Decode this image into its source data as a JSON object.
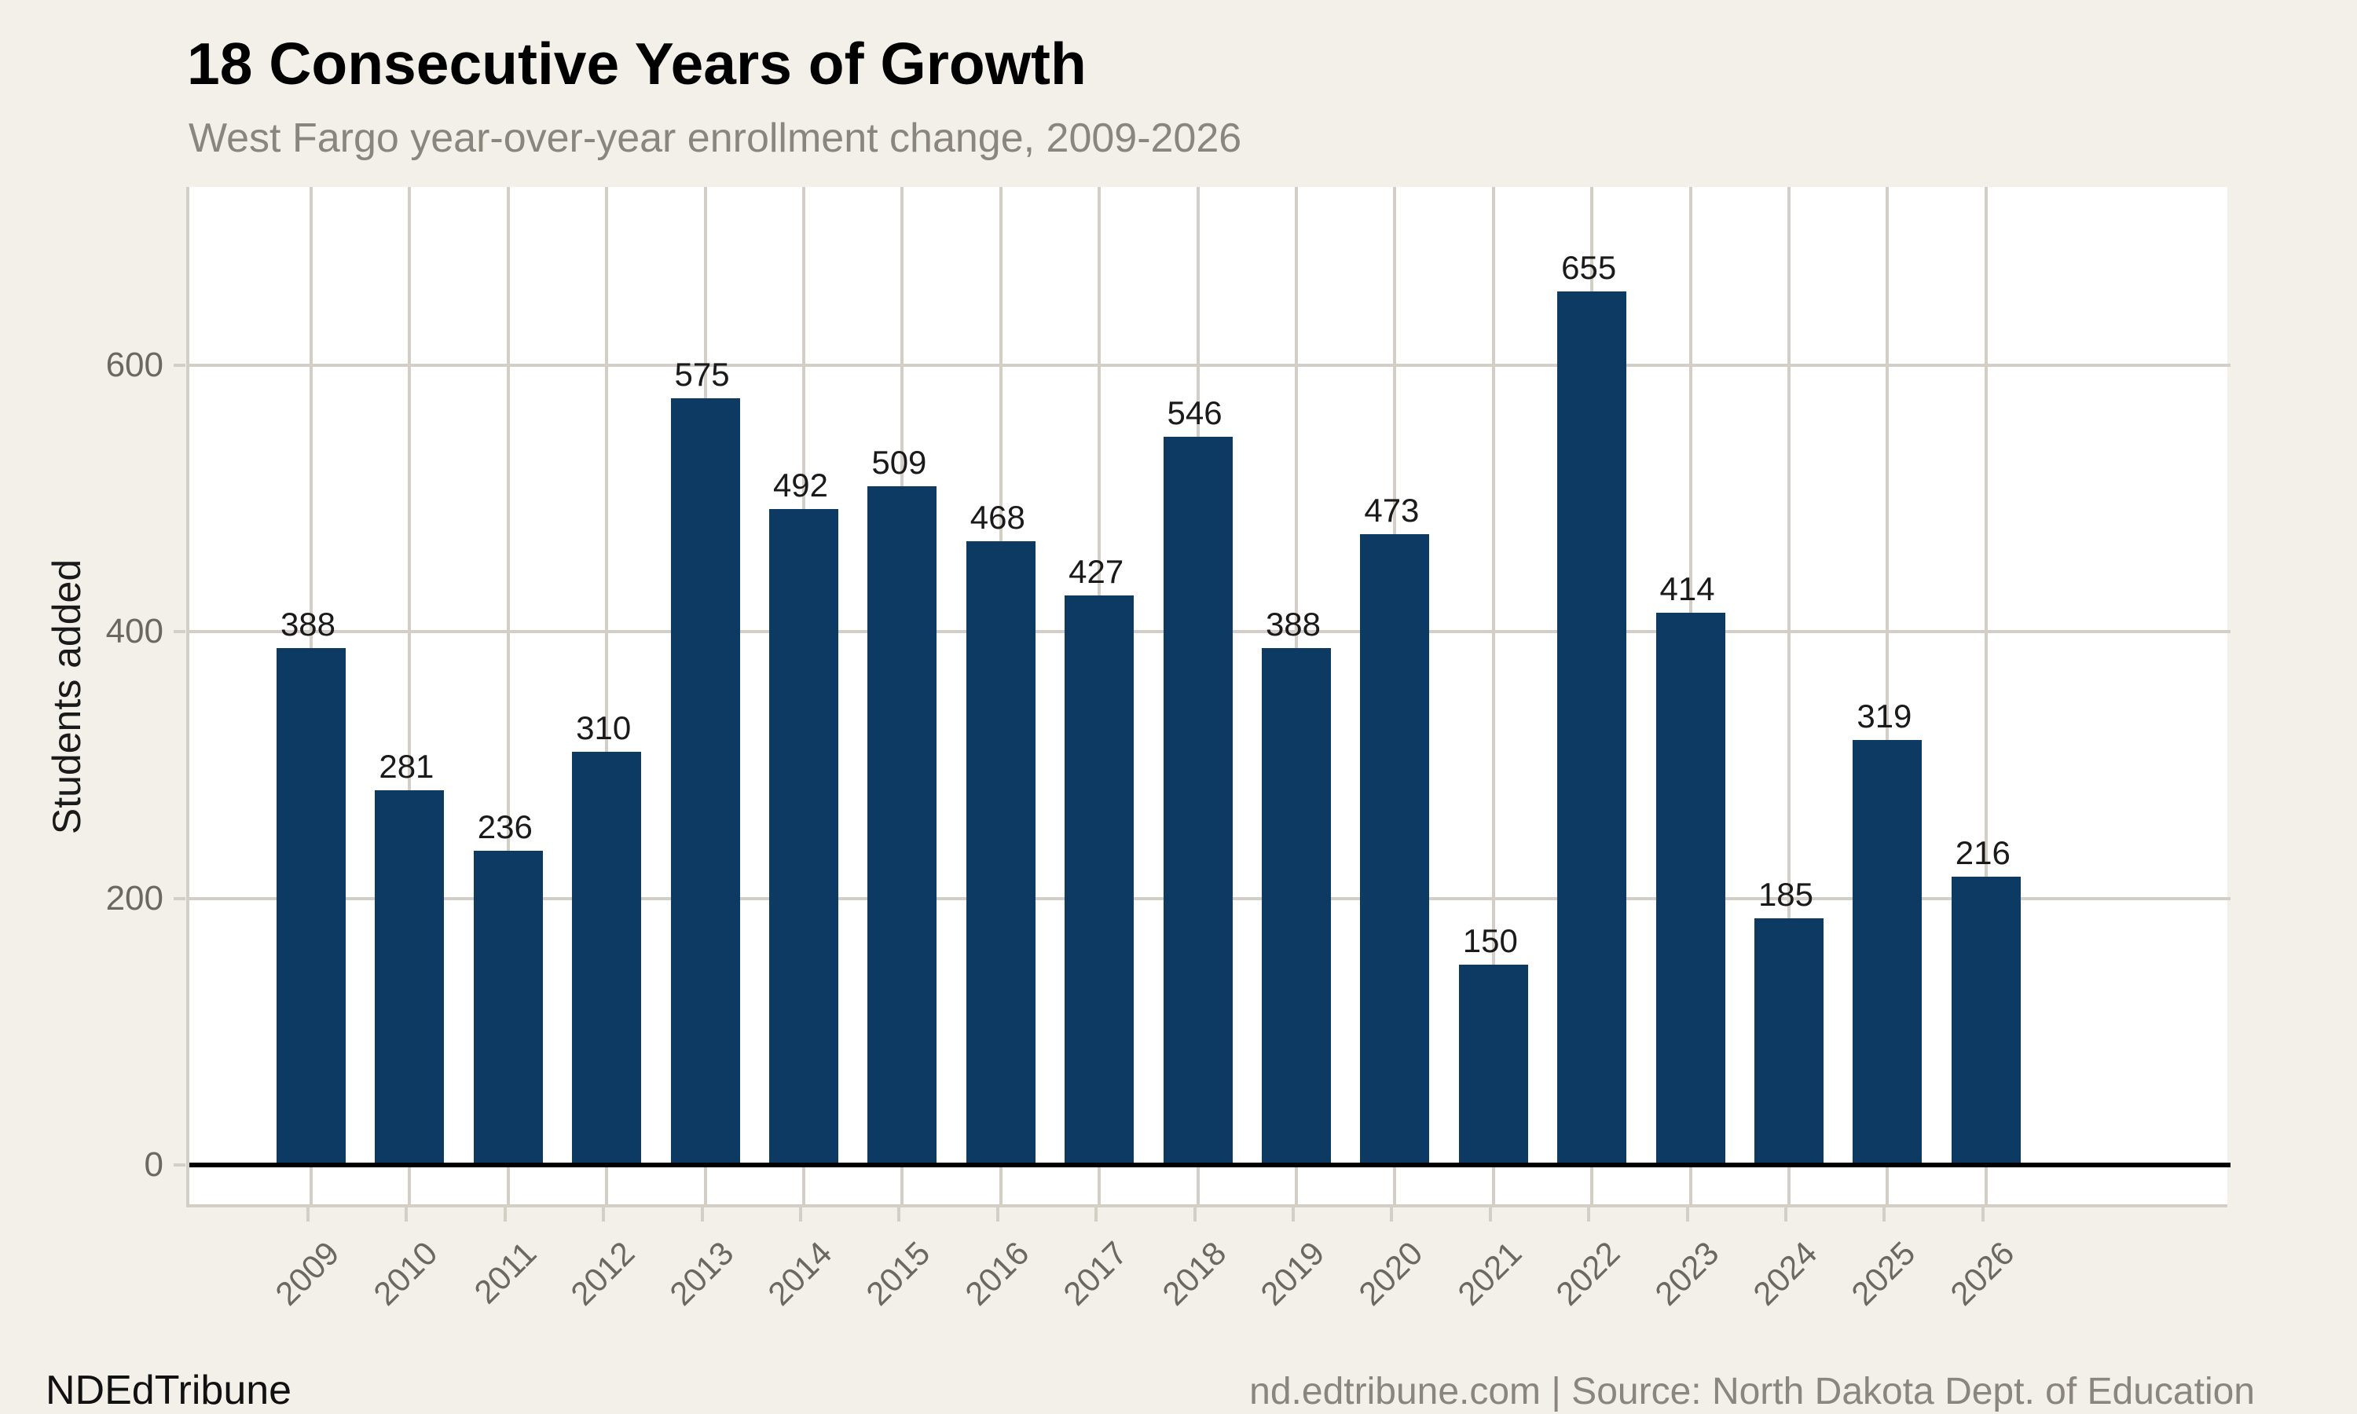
{
  "header": {
    "title": "18 Consecutive Years of Growth",
    "subtitle": "West Fargo year-over-year enrollment change, 2009-2026"
  },
  "footer": {
    "brand": "NDEdTribune",
    "source": "nd.edtribune.com | Source: North Dakota Dept. of Education"
  },
  "chart_data": {
    "type": "bar",
    "title": "18 Consecutive Years of Growth",
    "subtitle": "West Fargo year-over-year enrollment change, 2009-2026",
    "categories": [
      "2009",
      "2010",
      "2011",
      "2012",
      "2013",
      "2014",
      "2015",
      "2016",
      "2017",
      "2018",
      "2019",
      "2020",
      "2021",
      "2022",
      "2023",
      "2024",
      "2025",
      "2026"
    ],
    "values": [
      388,
      281,
      236,
      310,
      575,
      492,
      509,
      468,
      427,
      546,
      388,
      473,
      150,
      655,
      414,
      185,
      319,
      216
    ],
    "xlabel": "",
    "ylabel": "Students added",
    "yticks": [
      0,
      200,
      400,
      600
    ],
    "ylim": [
      -32,
      734
    ],
    "grid": "horizontal-and-vertical",
    "legend": "none",
    "value_labels": true
  },
  "colors": {
    "page_bg": "#f3f0e9",
    "panel_bg": "#ffffff",
    "bar": "#0c3a63",
    "grid": "#d3cfc7",
    "zero_line": "#000000",
    "tick_text": "#6b6862",
    "muted_text": "#8a857d",
    "title_text": "#000000",
    "value_text": "#1a1a1a"
  }
}
